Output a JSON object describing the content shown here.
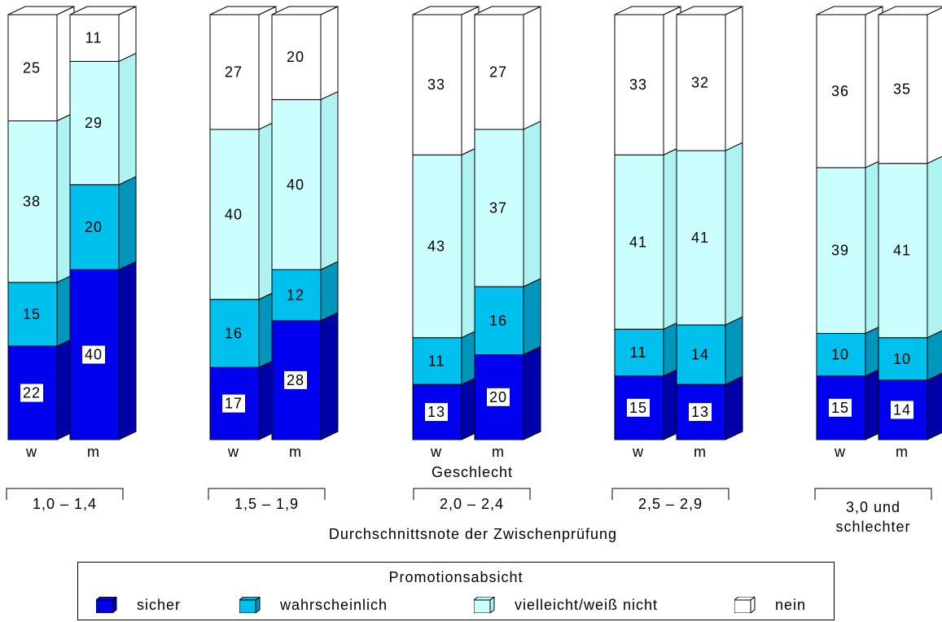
{
  "chart_data": {
    "type": "bar",
    "stacked": true,
    "y_unit": "percent",
    "xlabel": "Durchschnittsnote der Zwischenprüfung",
    "sublabel": "Geschlecht",
    "groups": [
      {
        "label": "1,0 – 1,4",
        "bars": [
          {
            "sex": "w",
            "values": [
              22,
              15,
              38,
              25
            ]
          },
          {
            "sex": "m",
            "values": [
              40,
              20,
              29,
              11
            ]
          }
        ]
      },
      {
        "label": "1,5 – 1,9",
        "bars": [
          {
            "sex": "w",
            "values": [
              17,
              16,
              40,
              27
            ]
          },
          {
            "sex": "m",
            "values": [
              28,
              12,
              40,
              20
            ]
          }
        ]
      },
      {
        "label": "2,0 – 2,4",
        "bars": [
          {
            "sex": "w",
            "values": [
              13,
              11,
              43,
              33
            ]
          },
          {
            "sex": "m",
            "values": [
              20,
              16,
              37,
              27
            ]
          }
        ]
      },
      {
        "label": "2,5 – 2,9",
        "bars": [
          {
            "sex": "w",
            "values": [
              15,
              11,
              41,
              33
            ]
          },
          {
            "sex": "m",
            "values": [
              13,
              14,
              41,
              32
            ]
          }
        ]
      },
      {
        "label": "3,0 und schlechter",
        "label_lines": [
          "3,0 und",
          "schlechter"
        ],
        "bars": [
          {
            "sex": "w",
            "values": [
              15,
              10,
              39,
              36
            ]
          },
          {
            "sex": "m",
            "values": [
              14,
              10,
              41,
              35
            ]
          }
        ]
      }
    ],
    "series": [
      {
        "name": "sicher",
        "color": "#0000ee",
        "side": "#0000a8",
        "top": "#0a0ad0"
      },
      {
        "name": "wahrscheinlich",
        "color": "#00c0ee",
        "side": "#0096bc",
        "top": "#00aedb"
      },
      {
        "name": "vielleicht/weiß nicht",
        "color": "#ccffff",
        "side": "#aef2f2",
        "top": "#bdf8f8"
      },
      {
        "name": "nein",
        "color": "#ffffff",
        "side": "#ffffff",
        "top": "#ffffff"
      }
    ],
    "legend_title": "Promotionsabsicht",
    "legend_position": "bottom"
  }
}
